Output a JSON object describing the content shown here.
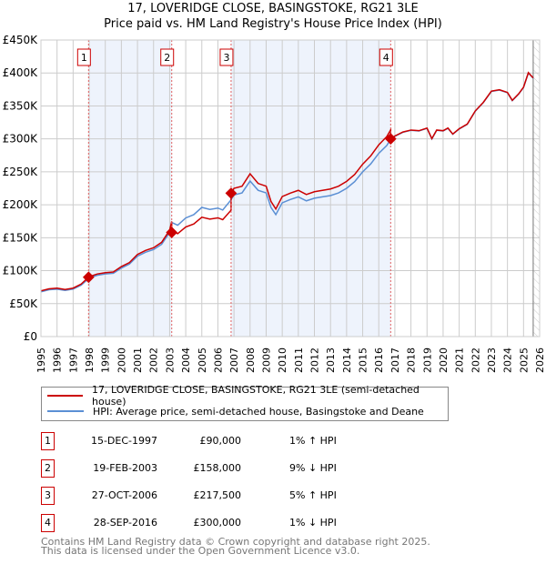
{
  "chart_data": {
    "type": "line",
    "title": "17, LOVERIDGE CLOSE, BASINGSTOKE, RG21 3LE",
    "subtitle": "Price paid vs. HM Land Registry's House Price Index (HPI)",
    "xlim": [
      1995,
      2026
    ],
    "ylim": [
      0,
      450000
    ],
    "y_ticks": [
      0,
      50000,
      100000,
      150000,
      200000,
      250000,
      300000,
      350000,
      400000,
      450000
    ],
    "y_tick_labels": [
      "£0",
      "£50K",
      "£100K",
      "£150K",
      "£200K",
      "£250K",
      "£300K",
      "£350K",
      "£400K",
      "£450K"
    ],
    "x_tick_labels": [
      "1995",
      "1996",
      "1997",
      "1998",
      "1999",
      "2000",
      "2001",
      "2002",
      "2003",
      "2004",
      "2005",
      "2006",
      "2007",
      "2008",
      "2009",
      "2010",
      "2011",
      "2012",
      "2013",
      "2014",
      "2015",
      "2016",
      "2017",
      "2018",
      "2019",
      "2020",
      "2021",
      "2022",
      "2023",
      "2024",
      "2025",
      "2026"
    ],
    "grid": true,
    "data_end": 2025.6,
    "colors": {
      "property": "#cc0000",
      "hpi": "#5b8fd4",
      "shade": "#eef3fc",
      "marker": "#cc0000"
    },
    "hpi_series": [
      [
        1995.0,
        68000
      ],
      [
        1995.5,
        71000
      ],
      [
        1996.0,
        72000
      ],
      [
        1996.5,
        70000
      ],
      [
        1997.0,
        72000
      ],
      [
        1997.5,
        78000
      ],
      [
        1998.0,
        89000
      ],
      [
        1998.5,
        93000
      ],
      [
        1999.0,
        95000
      ],
      [
        1999.5,
        96000
      ],
      [
        2000.0,
        104000
      ],
      [
        2000.5,
        110000
      ],
      [
        2001.0,
        122000
      ],
      [
        2001.5,
        128000
      ],
      [
        2002.0,
        132000
      ],
      [
        2002.5,
        140000
      ],
      [
        2003.0,
        158000
      ],
      [
        2003.15,
        173000
      ],
      [
        2003.5,
        169000
      ],
      [
        2004.0,
        180000
      ],
      [
        2004.5,
        185000
      ],
      [
        2005.0,
        196000
      ],
      [
        2005.5,
        193000
      ],
      [
        2006.0,
        195000
      ],
      [
        2006.3,
        192000
      ],
      [
        2006.8,
        207000
      ],
      [
        2007.0,
        215000
      ],
      [
        2007.5,
        218000
      ],
      [
        2008.0,
        236000
      ],
      [
        2008.5,
        222000
      ],
      [
        2009.0,
        218000
      ],
      [
        2009.3,
        196000
      ],
      [
        2009.6,
        185000
      ],
      [
        2010.0,
        203000
      ],
      [
        2010.5,
        208000
      ],
      [
        2011.0,
        212000
      ],
      [
        2011.5,
        206000
      ],
      [
        2012.0,
        210000
      ],
      [
        2012.5,
        212000
      ],
      [
        2013.0,
        214000
      ],
      [
        2013.5,
        218000
      ],
      [
        2014.0,
        225000
      ],
      [
        2014.5,
        235000
      ],
      [
        2015.0,
        250000
      ],
      [
        2015.5,
        262000
      ],
      [
        2016.0,
        278000
      ],
      [
        2016.5,
        290000
      ],
      [
        2016.75,
        300000
      ],
      [
        2017.0,
        304000
      ],
      [
        2017.5,
        310000
      ],
      [
        2018.0,
        313000
      ],
      [
        2018.5,
        312000
      ],
      [
        2019.0,
        316000
      ],
      [
        2019.3,
        300000
      ],
      [
        2019.6,
        313000
      ],
      [
        2020.0,
        312000
      ],
      [
        2020.3,
        316000
      ],
      [
        2020.6,
        307000
      ],
      [
        2021.0,
        315000
      ],
      [
        2021.5,
        322000
      ],
      [
        2022.0,
        342000
      ],
      [
        2022.5,
        355000
      ],
      [
        2023.0,
        372000
      ],
      [
        2023.5,
        374000
      ],
      [
        2024.0,
        370000
      ],
      [
        2024.3,
        358000
      ],
      [
        2024.7,
        368000
      ],
      [
        2025.0,
        378000
      ],
      [
        2025.3,
        400000
      ],
      [
        2025.6,
        392000
      ]
    ],
    "sales": [
      {
        "label": "1",
        "year": 1997.96,
        "price": 90000
      },
      {
        "label": "2",
        "year": 2003.13,
        "price": 158000
      },
      {
        "label": "3",
        "year": 2006.82,
        "price": 217500
      },
      {
        "label": "4",
        "year": 2016.74,
        "price": 300000
      }
    ],
    "legend": {
      "placement": "below",
      "property": "17, LOVERIDGE CLOSE, BASINGSTOKE, RG21 3LE (semi-detached house)",
      "hpi": "HPI: Average price, semi-detached house, Basingstoke and Deane"
    }
  },
  "table": [
    {
      "num": "1",
      "date": "15-DEC-1997",
      "price": "£90,000",
      "hpi": "1% ↑ HPI"
    },
    {
      "num": "2",
      "date": "19-FEB-2003",
      "price": "£158,000",
      "hpi": "9% ↓ HPI"
    },
    {
      "num": "3",
      "date": "27-OCT-2006",
      "price": "£217,500",
      "hpi": "5% ↑ HPI"
    },
    {
      "num": "4",
      "date": "28-SEP-2016",
      "price": "£300,000",
      "hpi": "1% ↓ HPI"
    }
  ],
  "footer": {
    "line1": "Contains HM Land Registry data © Crown copyright and database right 2025.",
    "line2": "This data is licensed under the Open Government Licence v3.0."
  }
}
